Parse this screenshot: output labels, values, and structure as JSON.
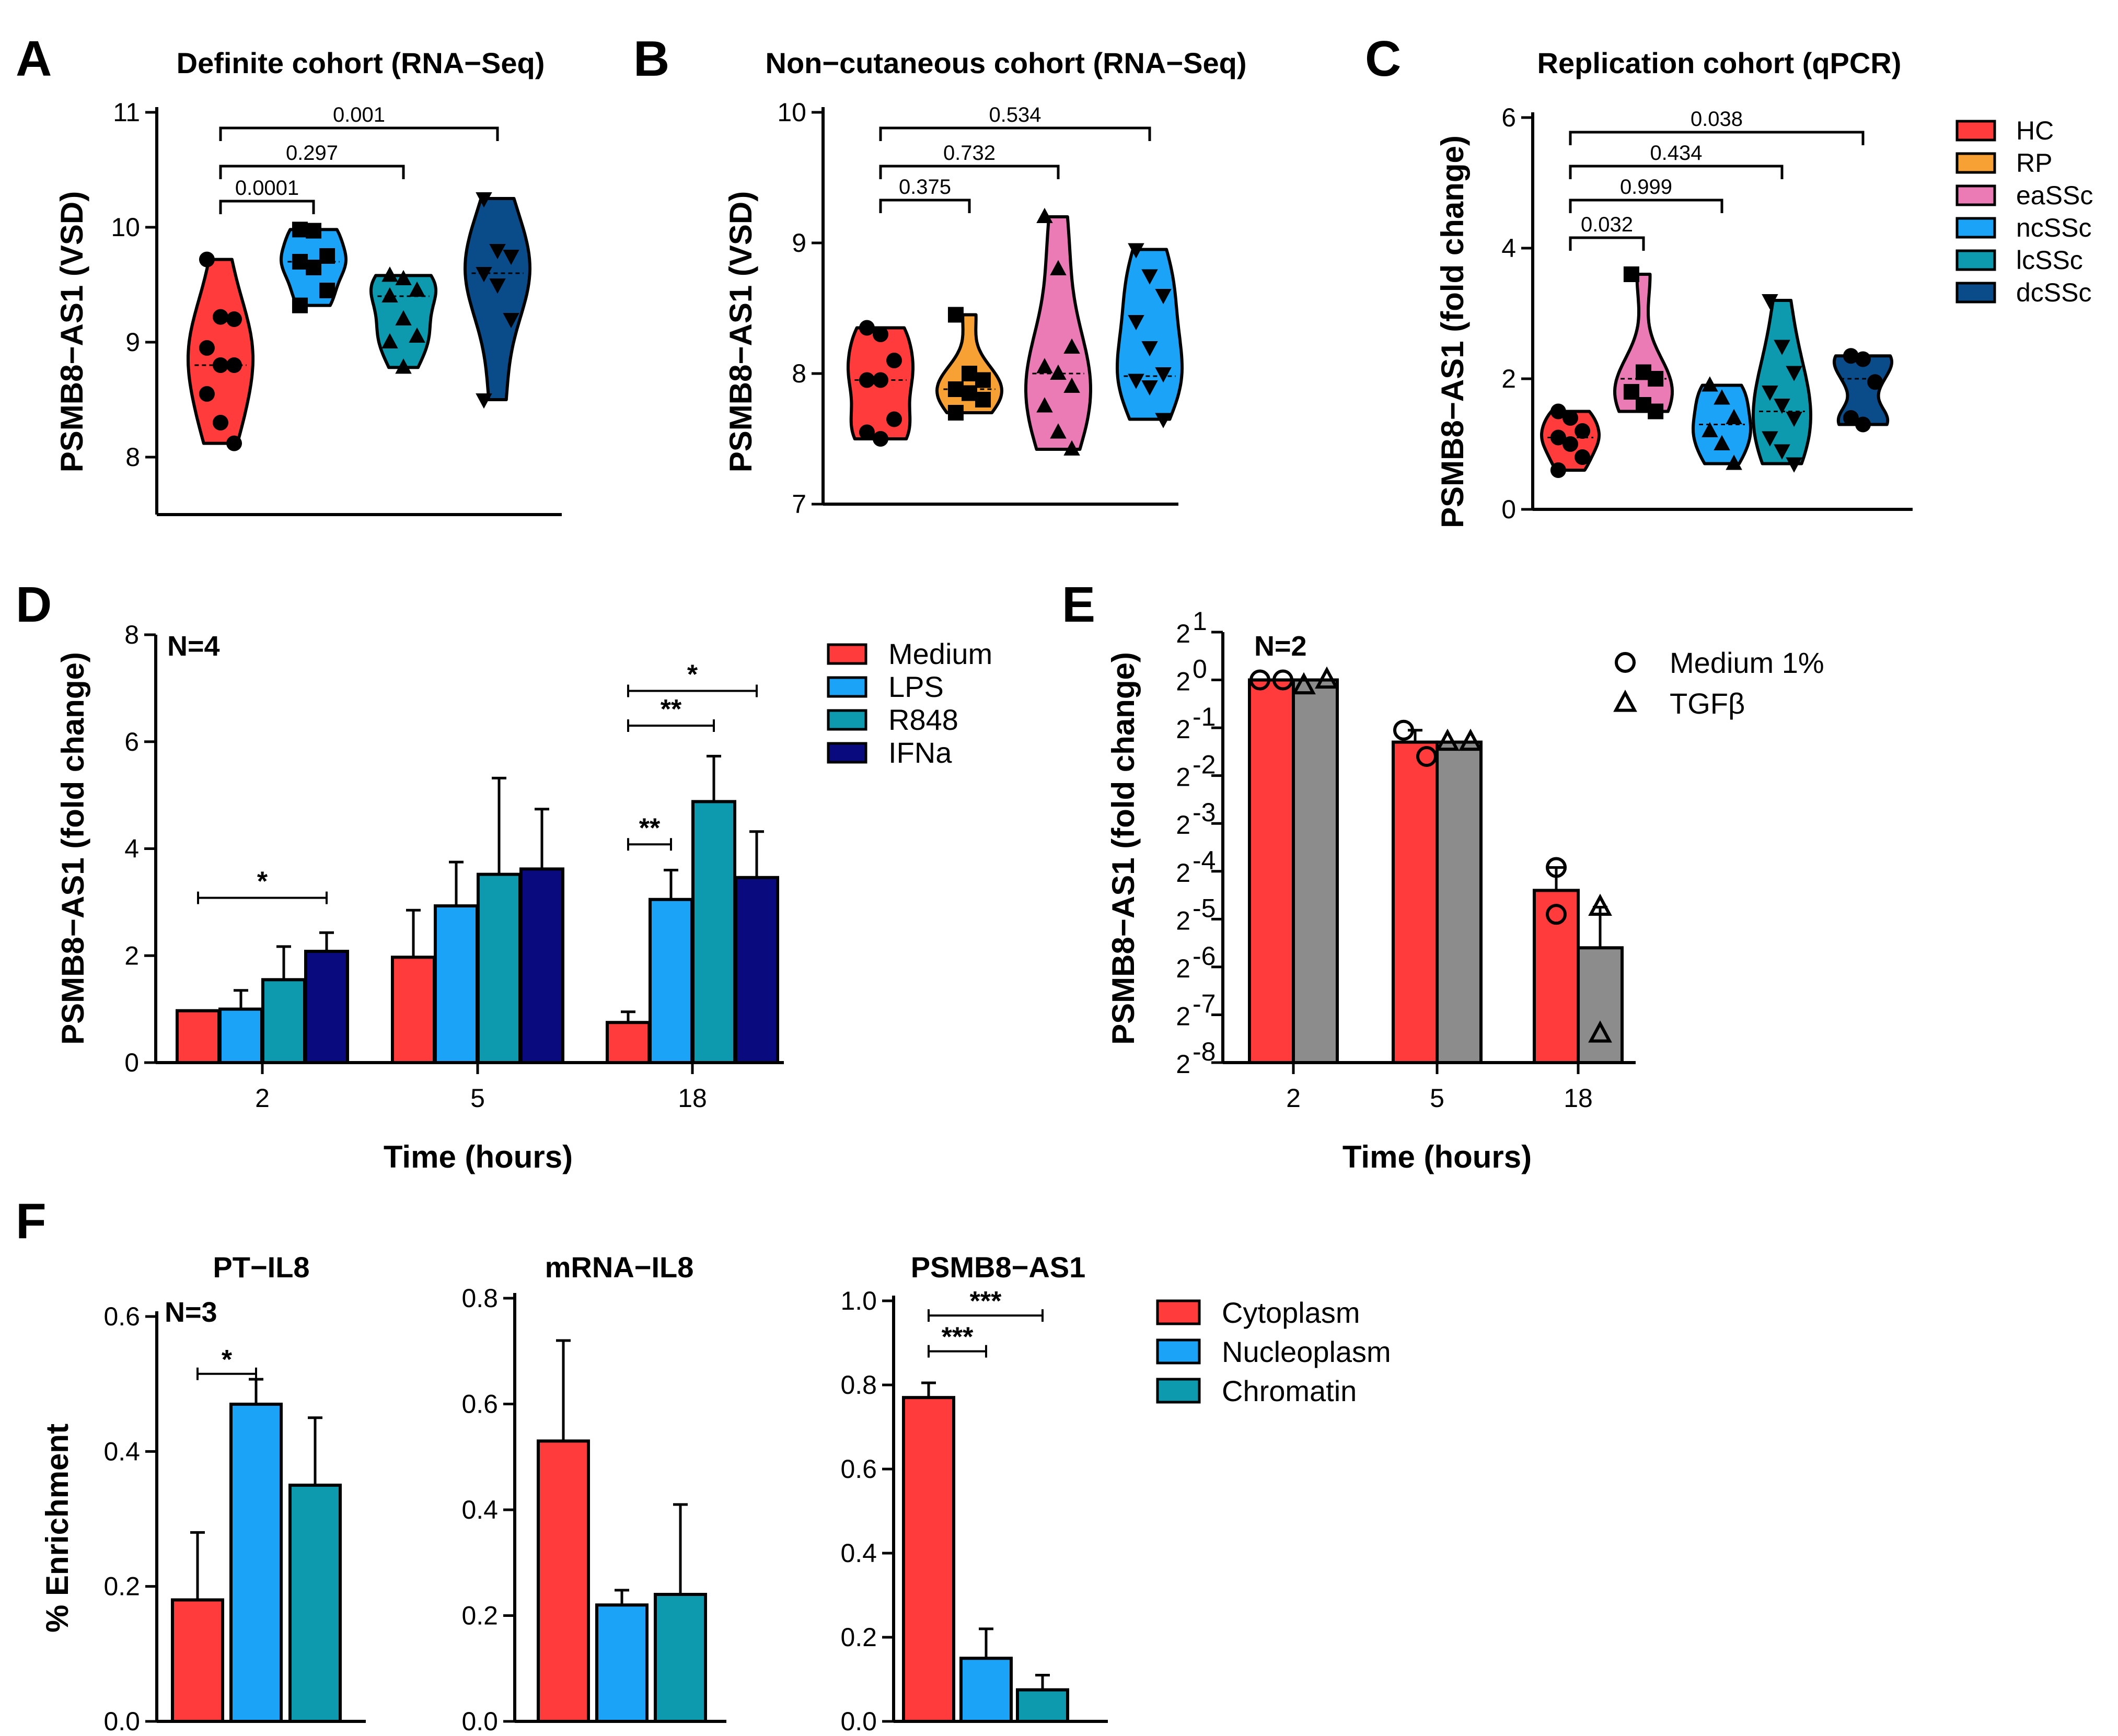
{
  "colors": {
    "red": "#FF3B3B",
    "orange": "#F7A033",
    "pink": "#EB7BB5",
    "blue": "#1BA4F7",
    "teal": "#0E9AAE",
    "darkblue": "#0A4C8A",
    "navy": "#080A7E",
    "gray": "#8C8C8C"
  },
  "panels": {
    "A": {
      "letter": "A",
      "title": "Definite cohort (RNA−Seq)",
      "ylabel": "PSMB8−AS1 (VSD)"
    },
    "B": {
      "letter": "B",
      "title": "Non−cutaneous cohort (RNA−Seq)",
      "ylabel": "PSMB8−AS1 (VSD)"
    },
    "C": {
      "letter": "C",
      "title": "Replication cohort (qPCR)",
      "ylabel": "PSMB8−AS1 (fold change)"
    },
    "D": {
      "letter": "D",
      "ylabel": "PSMB8−AS1 (fold change)",
      "xlabel": "Time (hours)",
      "n": "N=4"
    },
    "E": {
      "letter": "E",
      "ylabel": "PSMB8−AS1 (fold change)",
      "xlabel": "Time (hours)",
      "n": "N=2"
    },
    "F": {
      "letter": "F",
      "ylabel": "% Enrichment",
      "n": "N=3"
    }
  },
  "legend_groups": [
    {
      "label": "HC",
      "color": "#FF3B3B"
    },
    {
      "label": "RP",
      "color": "#F7A033"
    },
    {
      "label": "eaSSc",
      "color": "#EB7BB5"
    },
    {
      "label": "ncSSc",
      "color": "#1BA4F7"
    },
    {
      "label": "lcSSc",
      "color": "#0E9AAE"
    },
    {
      "label": "dcSSc",
      "color": "#0A4C8A"
    }
  ],
  "legend_D": [
    {
      "label": "Medium",
      "color": "#FF3B3B"
    },
    {
      "label": "LPS",
      "color": "#1BA4F7"
    },
    {
      "label": "R848",
      "color": "#0E9AAE"
    },
    {
      "label": "IFNa",
      "color": "#080A7E"
    }
  ],
  "legend_E": [
    {
      "label": "Medium 1%",
      "marker": "circle"
    },
    {
      "label": "TGFβ",
      "marker": "triangle"
    }
  ],
  "legend_F": [
    {
      "label": "Cytoplasm",
      "color": "#FF3B3B"
    },
    {
      "label": "Nucleoplasm",
      "color": "#1BA4F7"
    },
    {
      "label": "Chromatin",
      "color": "#0E9AAE"
    }
  ],
  "chart_data": [
    {
      "id": "A",
      "type": "violin",
      "title": "Definite cohort (RNA−Seq)",
      "ylabel": "PSMB8−AS1 (VSD)",
      "ylim": [
        7.5,
        11
      ],
      "yticks": [
        "8",
        "9",
        "10",
        "11"
      ],
      "groups": [
        {
          "name": "HC",
          "color": "#FF3B3B",
          "marker": "circle",
          "median": 8.8,
          "points": [
            9.72,
            9.22,
            9.2,
            8.95,
            8.8,
            8.8,
            8.55,
            8.3,
            8.12
          ]
        },
        {
          "name": "ncSSc",
          "color": "#1BA4F7",
          "marker": "square",
          "median": 9.7,
          "points": [
            9.98,
            9.97,
            9.75,
            9.7,
            9.65,
            9.45,
            9.32
          ]
        },
        {
          "name": "lcSSc",
          "color": "#0E9AAE",
          "marker": "triangle",
          "median": 9.4,
          "points": [
            9.58,
            9.55,
            9.45,
            9.4,
            9.2,
            9.05,
            9.0,
            8.78
          ]
        },
        {
          "name": "dcSSc",
          "color": "#0A4C8A",
          "marker": "triangle-down",
          "median": 9.6,
          "points": [
            10.25,
            9.8,
            9.75,
            9.6,
            9.5,
            9.2,
            8.5
          ]
        }
      ],
      "comparisons": [
        {
          "from": 0,
          "to": 1,
          "p": "0.0001"
        },
        {
          "from": 0,
          "to": 2,
          "p": "0.297"
        },
        {
          "from": 0,
          "to": 3,
          "p": "0.001"
        }
      ]
    },
    {
      "id": "B",
      "type": "violin",
      "title": "Non−cutaneous cohort (RNA−Seq)",
      "ylabel": "PSMB8−AS1 (VSD)",
      "ylim": [
        7,
        10
      ],
      "yticks": [
        "7",
        "8",
        "9",
        "10"
      ],
      "groups": [
        {
          "name": "HC",
          "color": "#FF3B3B",
          "marker": "circle",
          "median": 7.95,
          "points": [
            8.35,
            8.3,
            8.1,
            7.95,
            7.95,
            7.65,
            7.55,
            7.5
          ]
        },
        {
          "name": "RP",
          "color": "#F7A033",
          "marker": "square",
          "median": 7.88,
          "points": [
            8.45,
            8.0,
            7.95,
            7.88,
            7.85,
            7.8,
            7.7
          ]
        },
        {
          "name": "eaSSc",
          "color": "#EB7BB5",
          "marker": "triangle",
          "median": 8.0,
          "points": [
            9.2,
            8.8,
            8.2,
            8.05,
            8.0,
            7.9,
            7.75,
            7.55,
            7.42
          ]
        },
        {
          "name": "ncSSc",
          "color": "#1BA4F7",
          "marker": "triangle-down",
          "median": 7.98,
          "points": [
            8.95,
            8.75,
            8.6,
            8.4,
            8.2,
            8.0,
            7.95,
            7.9,
            7.65
          ]
        }
      ],
      "comparisons": [
        {
          "from": 0,
          "to": 1,
          "p": "0.375"
        },
        {
          "from": 0,
          "to": 2,
          "p": "0.732"
        },
        {
          "from": 0,
          "to": 3,
          "p": "0.534"
        }
      ]
    },
    {
      "id": "C",
      "type": "violin",
      "title": "Replication cohort (qPCR)",
      "ylabel": "PSMB8−AS1 (fold change)",
      "ylim": [
        0,
        6
      ],
      "yticks": [
        "0",
        "2",
        "4",
        "6"
      ],
      "groups": [
        {
          "name": "HC",
          "color": "#FF3B3B",
          "marker": "circle",
          "median": 1.1,
          "points": [
            1.5,
            1.4,
            1.2,
            1.1,
            1.0,
            0.8,
            0.6
          ]
        },
        {
          "name": "eaSSc",
          "color": "#EB7BB5",
          "marker": "square",
          "median": 2.0,
          "points": [
            3.6,
            2.1,
            2.0,
            1.8,
            1.6,
            1.5
          ]
        },
        {
          "name": "ncSSc",
          "color": "#1BA4F7",
          "marker": "triangle",
          "median": 1.3,
          "points": [
            1.9,
            1.7,
            1.4,
            1.2,
            1.0,
            0.7
          ]
        },
        {
          "name": "lcSSc",
          "color": "#0E9AAE",
          "marker": "triangle-down",
          "median": 1.5,
          "points": [
            3.2,
            2.5,
            2.1,
            1.8,
            1.6,
            1.4,
            1.1,
            0.9,
            0.7
          ]
        },
        {
          "name": "dcSSc",
          "color": "#0A4C8A",
          "marker": "circle",
          "median": 2.0,
          "points": [
            2.35,
            2.3,
            1.95,
            1.4,
            1.3
          ]
        }
      ],
      "comparisons": [
        {
          "from": 0,
          "to": 1,
          "p": "0.032"
        },
        {
          "from": 0,
          "to": 2,
          "p": "0.999"
        },
        {
          "from": 0,
          "to": 3,
          "p": "0.434"
        },
        {
          "from": 0,
          "to": 4,
          "p": "0.038"
        }
      ]
    },
    {
      "id": "D",
      "type": "bar",
      "ylabel": "PSMB8−AS1 (fold change)",
      "xlabel": "Time (hours)",
      "ylim": [
        0,
        8
      ],
      "yticks": [
        "0",
        "2",
        "4",
        "6",
        "8"
      ],
      "categories": [
        "2",
        "5",
        "18"
      ],
      "series": [
        {
          "name": "Medium",
          "color": "#FF3B3B",
          "values": [
            0.97,
            1.97,
            0.75
          ],
          "errors": [
            0.0,
            0.88,
            0.2
          ]
        },
        {
          "name": "LPS",
          "color": "#1BA4F7",
          "values": [
            1.0,
            2.93,
            3.05
          ],
          "errors": [
            0.35,
            0.82,
            0.55
          ]
        },
        {
          "name": "R848",
          "color": "#0E9AAE",
          "values": [
            1.55,
            3.52,
            4.88
          ],
          "errors": [
            0.62,
            1.8,
            0.85
          ]
        },
        {
          "name": "IFNa",
          "color": "#080A7E",
          "values": [
            2.08,
            3.62,
            3.46
          ],
          "errors": [
            0.35,
            1.12,
            0.86
          ]
        }
      ],
      "significance": [
        {
          "category": 0,
          "from": 0,
          "to": 3,
          "label": "*",
          "level": 3.08
        },
        {
          "category": 2,
          "from": 0,
          "to": 1,
          "label": "**",
          "level": 4.08
        },
        {
          "category": 2,
          "from": 0,
          "to": 2,
          "label": "**",
          "level": 6.3
        },
        {
          "category": 2,
          "from": 0,
          "to": 3,
          "label": "*",
          "level": 6.95
        }
      ]
    },
    {
      "id": "E",
      "type": "bar",
      "yscale": "log2",
      "ylabel": "PSMB8−AS1 (fold change)",
      "xlabel": "Time (hours)",
      "ylim_log2": [
        -8,
        1
      ],
      "ytick_exponents": [
        "1",
        "0",
        "-1",
        "-2",
        "-3",
        "-4",
        "-5",
        "-6",
        "-7",
        "-8"
      ],
      "categories": [
        "2",
        "5",
        "18"
      ],
      "series": [
        {
          "name": "Medium 1%",
          "color": "#FF3B3B",
          "marker": "circle",
          "log2_values": [
            0,
            -1.3,
            -4.4
          ],
          "log2_error_top": [
            0,
            -1.05,
            -3.92
          ],
          "log2_points": [
            [
              0,
              0
            ],
            [
              -1.05,
              -1.6
            ],
            [
              -3.92,
              -4.9
            ]
          ]
        },
        {
          "name": "TGFβ",
          "color": "#8C8C8C",
          "marker": "triangle",
          "log2_values": [
            0,
            -1.3,
            -5.6
          ],
          "log2_error_top": [
            0,
            -1.3,
            -4.75
          ],
          "log2_points": [
            [
              -0.12,
              0.0
            ],
            [
              -1.3,
              -1.3
            ],
            [
              -4.75,
              -7.4
            ]
          ]
        }
      ]
    },
    {
      "id": "F1",
      "type": "bar",
      "title": "PT−IL8",
      "ylabel": "% Enrichment",
      "ylim": [
        0,
        0.6
      ],
      "yticks": [
        "0.0",
        "0.2",
        "0.4",
        "0.6"
      ],
      "categories": [
        "Cytoplasm",
        "Nucleoplasm",
        "Chromatin"
      ],
      "values": [
        0.18,
        0.47,
        0.35
      ],
      "errors": [
        0.1,
        0.037,
        0.1
      ],
      "significance": [
        {
          "from": 0,
          "to": 1,
          "label": "*",
          "level": 0.515
        }
      ]
    },
    {
      "id": "F2",
      "type": "bar",
      "title": "mRNA−IL8",
      "ylim": [
        0,
        0.8
      ],
      "yticks": [
        "0.0",
        "0.2",
        "0.4",
        "0.6",
        "0.8"
      ],
      "categories": [
        "Cytoplasm",
        "Nucleoplasm",
        "Chromatin"
      ],
      "values": [
        0.53,
        0.22,
        0.24
      ],
      "errors": [
        0.19,
        0.028,
        0.17
      ],
      "significance": []
    },
    {
      "id": "F3",
      "type": "bar",
      "title": "PSMB8−AS1",
      "ylim": [
        0,
        1.0
      ],
      "yticks": [
        "0.0",
        "0.2",
        "0.4",
        "0.6",
        "0.8",
        "1.0"
      ],
      "categories": [
        "Cytoplasm",
        "Nucleoplasm",
        "Chromatin"
      ],
      "values": [
        0.77,
        0.15,
        0.075
      ],
      "errors": [
        0.035,
        0.07,
        0.035
      ],
      "significance": [
        {
          "from": 0,
          "to": 1,
          "label": "***",
          "level": 0.88
        },
        {
          "from": 0,
          "to": 2,
          "label": "***",
          "level": 0.965
        }
      ]
    }
  ]
}
